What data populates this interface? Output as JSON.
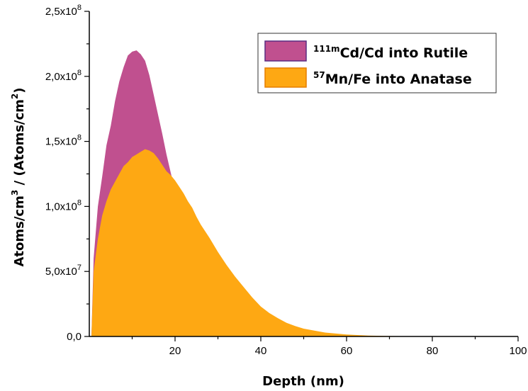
{
  "chart_data": {
    "type": "area",
    "xlabel": "Depth (nm)",
    "ylabel": {
      "prefix": "Atoms/cm",
      "sup1": "3",
      "middle": " / (Atoms/cm",
      "sup2": "2",
      "suffix": ")"
    },
    "xlim": [
      0,
      100
    ],
    "ylim": [
      0,
      250000000
    ],
    "x_ticks": [
      {
        "value": 20,
        "label": "20"
      },
      {
        "value": 40,
        "label": "40"
      },
      {
        "value": 60,
        "label": "60"
      },
      {
        "value": 80,
        "label": "80"
      },
      {
        "value": 100,
        "label": "100"
      }
    ],
    "y_ticks": [
      {
        "value": 0,
        "mantissa": "0,0",
        "exp": ""
      },
      {
        "value": 50000000,
        "mantissa": "5,0x10",
        "exp": "7"
      },
      {
        "value": 100000000,
        "mantissa": "1,0x10",
        "exp": "8"
      },
      {
        "value": 150000000,
        "mantissa": "1,5x10",
        "exp": "8"
      },
      {
        "value": 200000000,
        "mantissa": "2,0x10",
        "exp": "8"
      },
      {
        "value": 250000000,
        "mantissa": "2,5x10",
        "exp": "8"
      }
    ],
    "grid": false,
    "legend_position": "top-right",
    "series": [
      {
        "name": "Cd/Cd into Rutile",
        "name_sup": "111m",
        "color": "#c0508f",
        "edge_color": "#5a2d82",
        "x": [
          0.5,
          1,
          2,
          3,
          4,
          5,
          6,
          7,
          8,
          9,
          10,
          11,
          12,
          13,
          14,
          15,
          16,
          17,
          18,
          19,
          20,
          21,
          22,
          23,
          24,
          25,
          26,
          27,
          28,
          29,
          30,
          32,
          34,
          36,
          38,
          40,
          45,
          50,
          55,
          60,
          70,
          80,
          90,
          100
        ],
        "y": [
          0,
          60000000,
          100000000,
          123000000,
          147000000,
          162000000,
          181000000,
          196000000,
          207000000,
          216000000,
          219000000,
          220000000,
          217000000,
          212000000,
          201000000,
          186000000,
          171000000,
          156000000,
          140000000,
          126000000,
          112000000,
          97000000,
          83000000,
          70000000,
          58000000,
          47000000,
          39000000,
          32000000,
          26000000,
          21000000,
          17000000,
          12000000,
          9000000,
          7000000,
          5000000,
          3500000,
          1500000,
          700000,
          300000,
          150000,
          50000,
          20000,
          10000,
          0
        ]
      },
      {
        "name": "Mn/Fe into Anatase",
        "name_sup": "57",
        "color": "#fea813",
        "edge_color": "#e67e00",
        "x": [
          0.5,
          1,
          2,
          3,
          4,
          5,
          6,
          7,
          8,
          9,
          10,
          11,
          12,
          13,
          14,
          15,
          16,
          17,
          18,
          19,
          20,
          21,
          22,
          23,
          24,
          25,
          26,
          28,
          30,
          32,
          34,
          36,
          38,
          40,
          42,
          44,
          46,
          48,
          50,
          55,
          60,
          65,
          70,
          80,
          90,
          100
        ],
        "y": [
          0,
          50000000,
          75000000,
          93000000,
          104000000,
          113000000,
          119000000,
          125000000,
          131000000,
          134000000,
          138000000,
          140000000,
          142000000,
          144000000,
          143000000,
          141000000,
          137000000,
          132000000,
          127000000,
          124000000,
          120000000,
          115000000,
          110000000,
          104000000,
          99000000,
          92000000,
          86000000,
          76000000,
          65000000,
          55000000,
          46000000,
          38000000,
          30000000,
          23000000,
          18000000,
          14000000,
          10500000,
          8000000,
          6000000,
          3000000,
          1500000,
          700000,
          300000,
          80000,
          20000,
          0
        ]
      }
    ]
  }
}
